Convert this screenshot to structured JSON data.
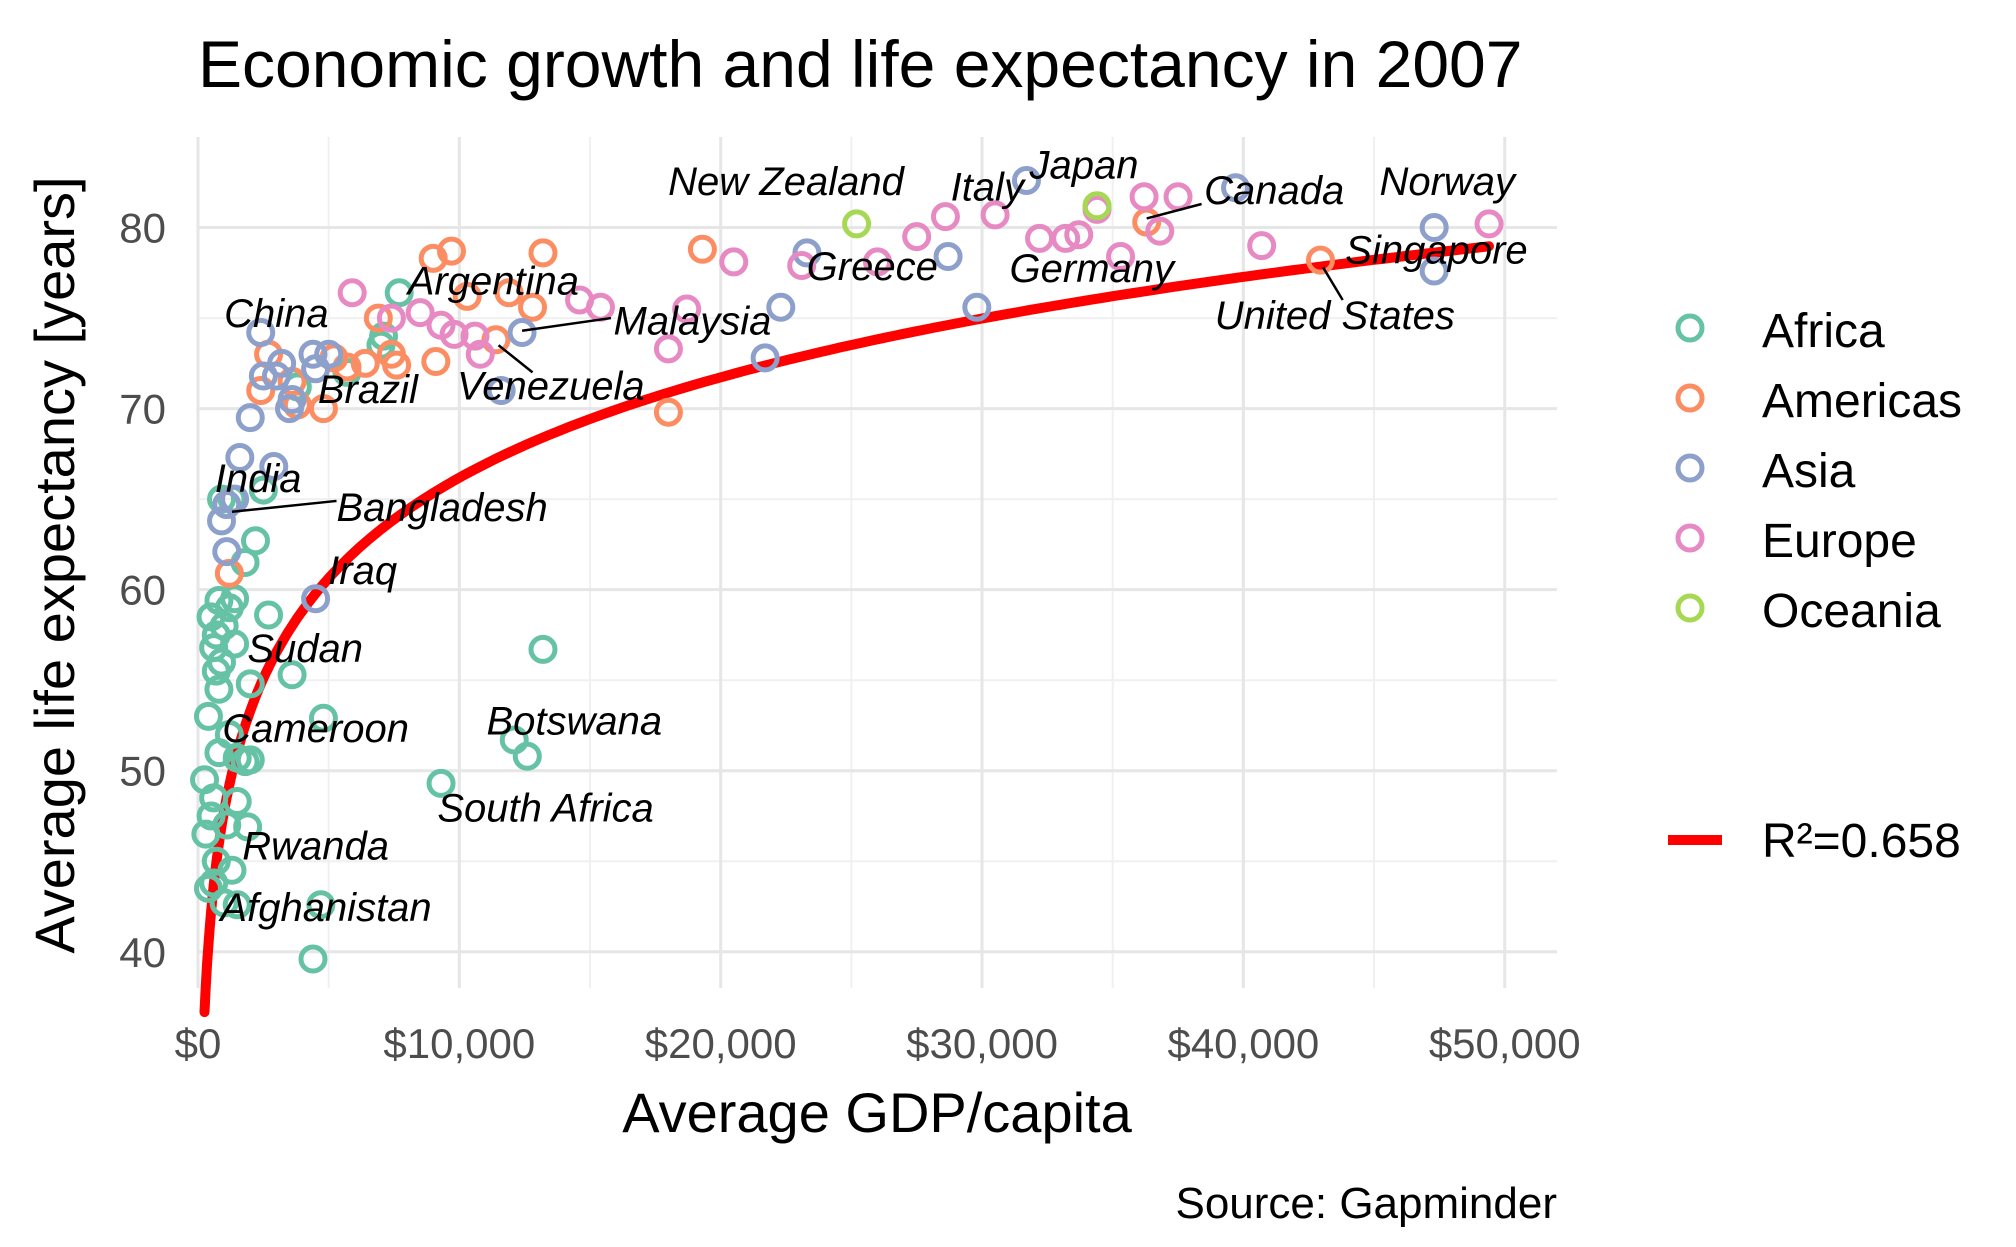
{
  "chart_data": {
    "type": "scatter",
    "title": "Economic growth and life expectancy in 2007",
    "xlabel": "Average GDP/capita",
    "ylabel": "Average life expectancy [years]",
    "caption": "Source: Gapminder",
    "xlim": [
      0,
      52000
    ],
    "ylim": [
      38,
      85
    ],
    "x_ticks": [
      {
        "value": 0,
        "label": "$0"
      },
      {
        "value": 10000,
        "label": "$10,000"
      },
      {
        "value": 20000,
        "label": "$20,000"
      },
      {
        "value": 30000,
        "label": "$30,000"
      },
      {
        "value": 40000,
        "label": "$40,000"
      },
      {
        "value": 50000,
        "label": "$50,000"
      }
    ],
    "y_ticks": [
      {
        "value": 40,
        "label": "40"
      },
      {
        "value": 50,
        "label": "50"
      },
      {
        "value": 60,
        "label": "60"
      },
      {
        "value": 70,
        "label": "70"
      },
      {
        "value": 80,
        "label": "80"
      }
    ],
    "grid": true,
    "legend_position": "right",
    "fit": {
      "label": "R²=0.658",
      "color": "#ff0000",
      "model": "logarithmic",
      "a": -7.5,
      "b": 8.0
    },
    "series": [
      {
        "name": "Africa",
        "color": "#66c2a5",
        "points": [
          [
            7700,
            76.4
          ],
          [
            7100,
            74.0
          ],
          [
            7000,
            73.5
          ],
          [
            2700,
            58.6
          ],
          [
            13200,
            56.7
          ],
          [
            3600,
            55.3
          ],
          [
            2000,
            54.8
          ],
          [
            4800,
            52.9
          ],
          [
            12100,
            51.7
          ],
          [
            12600,
            50.8
          ],
          [
            9300,
            49.3
          ],
          [
            2000,
            50.6
          ],
          [
            1500,
            50.7
          ],
          [
            1500,
            48.3
          ],
          [
            1900,
            46.9
          ],
          [
            4700,
            42.6
          ],
          [
            4400,
            39.6
          ],
          [
            1500,
            42.6
          ],
          [
            1000,
            42.7
          ],
          [
            600,
            43.8
          ],
          [
            400,
            43.5
          ],
          [
            300,
            46.5
          ],
          [
            500,
            47.5
          ],
          [
            250,
            49.5
          ],
          [
            400,
            53.0
          ],
          [
            800,
            54.5
          ],
          [
            900,
            56.0
          ],
          [
            600,
            56.8
          ],
          [
            700,
            57.5
          ],
          [
            1000,
            58.0
          ],
          [
            500,
            58.5
          ],
          [
            1200,
            59.0
          ],
          [
            1400,
            59.5
          ],
          [
            800,
            59.4
          ],
          [
            1300,
            65.0
          ],
          [
            2500,
            65.5
          ],
          [
            900,
            65.0
          ],
          [
            1800,
            61.5
          ],
          [
            1200,
            52.0
          ],
          [
            800,
            51.0
          ],
          [
            600,
            48.5
          ],
          [
            1100,
            47.0
          ],
          [
            700,
            45.0
          ],
          [
            1300,
            44.5
          ],
          [
            2200,
            62.7
          ],
          [
            3800,
            71.2
          ],
          [
            5700,
            72.0
          ],
          [
            700,
            55.5
          ],
          [
            1800,
            50.5
          ],
          [
            1400,
            57.0
          ]
        ]
      },
      {
        "name": "Americas",
        "color": "#fc8d62",
        "points": [
          [
            9000,
            78.3
          ],
          [
            9700,
            78.7
          ],
          [
            13200,
            78.6
          ],
          [
            19300,
            78.8
          ],
          [
            12800,
            75.6
          ],
          [
            11900,
            76.4
          ],
          [
            10300,
            76.2
          ],
          [
            6900,
            75.0
          ],
          [
            7400,
            73.0
          ],
          [
            9100,
            72.6
          ],
          [
            11400,
            73.8
          ],
          [
            5700,
            72.3
          ],
          [
            6400,
            72.5
          ],
          [
            3800,
            70.2
          ],
          [
            4800,
            70.0
          ],
          [
            2700,
            73.0
          ],
          [
            2400,
            71.0
          ],
          [
            5200,
            72.8
          ],
          [
            18000,
            69.8
          ],
          [
            1200,
            60.9
          ],
          [
            36300,
            80.3
          ],
          [
            42950,
            78.2
          ],
          [
            3600,
            71.5
          ],
          [
            7600,
            72.4
          ]
        ]
      },
      {
        "name": "Asia",
        "color": "#8da0cb",
        "points": [
          [
            31700,
            82.6
          ],
          [
            39700,
            82.2
          ],
          [
            23300,
            78.6
          ],
          [
            28700,
            78.4
          ],
          [
            47300,
            80.0
          ],
          [
            47300,
            77.6
          ],
          [
            29800,
            75.6
          ],
          [
            22300,
            75.6
          ],
          [
            21700,
            72.8
          ],
          [
            12400,
            74.2
          ],
          [
            11600,
            71.0
          ],
          [
            4500,
            72.2
          ],
          [
            5000,
            73.0
          ],
          [
            3200,
            72.5
          ],
          [
            2400,
            74.2
          ],
          [
            3000,
            71.8
          ],
          [
            4400,
            73.0
          ],
          [
            3600,
            70.5
          ],
          [
            1600,
            67.3
          ],
          [
            2900,
            66.8
          ],
          [
            4500,
            59.5
          ],
          [
            1100,
            64.7
          ],
          [
            900,
            63.8
          ],
          [
            1100,
            62.1
          ],
          [
            2500,
            71.8
          ],
          [
            2000,
            69.5
          ],
          [
            3500,
            70.0
          ],
          [
            1400,
            65.0
          ]
        ]
      },
      {
        "name": "Europe",
        "color": "#e78ac3",
        "points": [
          [
            49400,
            80.2
          ],
          [
            36200,
            81.7
          ],
          [
            37500,
            81.7
          ],
          [
            34400,
            81.0
          ],
          [
            30500,
            80.7
          ],
          [
            28600,
            80.6
          ],
          [
            33200,
            79.4
          ],
          [
            32200,
            79.4
          ],
          [
            36800,
            79.8
          ],
          [
            35300,
            78.4
          ],
          [
            40700,
            79.0
          ],
          [
            26000,
            78.1
          ],
          [
            20500,
            78.1
          ],
          [
            18700,
            75.5
          ],
          [
            18000,
            73.3
          ],
          [
            14600,
            76.0
          ],
          [
            15400,
            75.6
          ],
          [
            10600,
            74.0
          ],
          [
            9800,
            74.1
          ],
          [
            9300,
            74.6
          ],
          [
            8500,
            75.3
          ],
          [
            5900,
            76.4
          ],
          [
            7400,
            75.0
          ],
          [
            10800,
            73.0
          ],
          [
            27500,
            79.5
          ],
          [
            23100,
            77.9
          ],
          [
            33700,
            79.6
          ]
        ]
      },
      {
        "name": "Oceania",
        "color": "#a6d854",
        "points": [
          [
            25200,
            80.2
          ],
          [
            34400,
            81.2
          ]
        ]
      }
    ],
    "labels": [
      {
        "text": "New Zealand",
        "x": 22500,
        "y": 81.8,
        "anchor": "middle"
      },
      {
        "text": "Italy",
        "x": 30200,
        "y": 81.5,
        "anchor": "middle"
      },
      {
        "text": "Japan",
        "x": 33900,
        "y": 82.7,
        "anchor": "middle"
      },
      {
        "text": "Canada",
        "x": 38500,
        "y": 81.3,
        "anchor": "start"
      },
      {
        "text": "Norway",
        "x": 47800,
        "y": 81.8,
        "anchor": "middle"
      },
      {
        "text": "Argentina",
        "x": 11300,
        "y": 76.3,
        "anchor": "middle"
      },
      {
        "text": "Greece",
        "x": 25800,
        "y": 77.1,
        "anchor": "middle"
      },
      {
        "text": "Germany",
        "x": 34200,
        "y": 77.0,
        "anchor": "middle"
      },
      {
        "text": "Singapore",
        "x": 43900,
        "y": 78.0,
        "anchor": "start"
      },
      {
        "text": "United States",
        "x": 43500,
        "y": 74.4,
        "anchor": "middle"
      },
      {
        "text": "China",
        "x": 3000,
        "y": 74.5,
        "anchor": "middle"
      },
      {
        "text": "Malaysia",
        "x": 15900,
        "y": 74.1,
        "anchor": "start"
      },
      {
        "text": "Brazil",
        "x": 6500,
        "y": 70.3,
        "anchor": "middle"
      },
      {
        "text": "Venezuela",
        "x": 13500,
        "y": 70.5,
        "anchor": "middle"
      },
      {
        "text": "India",
        "x": 2300,
        "y": 65.4,
        "anchor": "middle"
      },
      {
        "text": "Bangladesh",
        "x": 5300,
        "y": 63.8,
        "anchor": "start"
      },
      {
        "text": "Iraq",
        "x": 6300,
        "y": 60.3,
        "anchor": "middle"
      },
      {
        "text": "Sudan",
        "x": 4100,
        "y": 56.0,
        "anchor": "middle"
      },
      {
        "text": "Cameroon",
        "x": 4500,
        "y": 51.6,
        "anchor": "middle"
      },
      {
        "text": "Botswana",
        "x": 14400,
        "y": 52.0,
        "anchor": "middle"
      },
      {
        "text": "South Africa",
        "x": 13300,
        "y": 47.2,
        "anchor": "middle"
      },
      {
        "text": "Rwanda",
        "x": 4500,
        "y": 45.1,
        "anchor": "middle"
      },
      {
        "text": "Afghanistan",
        "x": 4900,
        "y": 41.7,
        "anchor": "middle"
      }
    ],
    "leaders": [
      {
        "from": [
          1300,
          64.3
        ],
        "to": [
          5300,
          64.9
        ]
      },
      {
        "from": [
          15800,
          75.0
        ],
        "to": [
          12400,
          74.3
        ]
      },
      {
        "from": [
          11500,
          73.5
        ],
        "to": [
          12800,
          72.0
        ]
      },
      {
        "from": [
          36300,
          80.5
        ],
        "to": [
          38400,
          81.3
        ]
      },
      {
        "from": [
          43050,
          77.8
        ],
        "to": [
          43800,
          76.0
        ]
      }
    ]
  }
}
